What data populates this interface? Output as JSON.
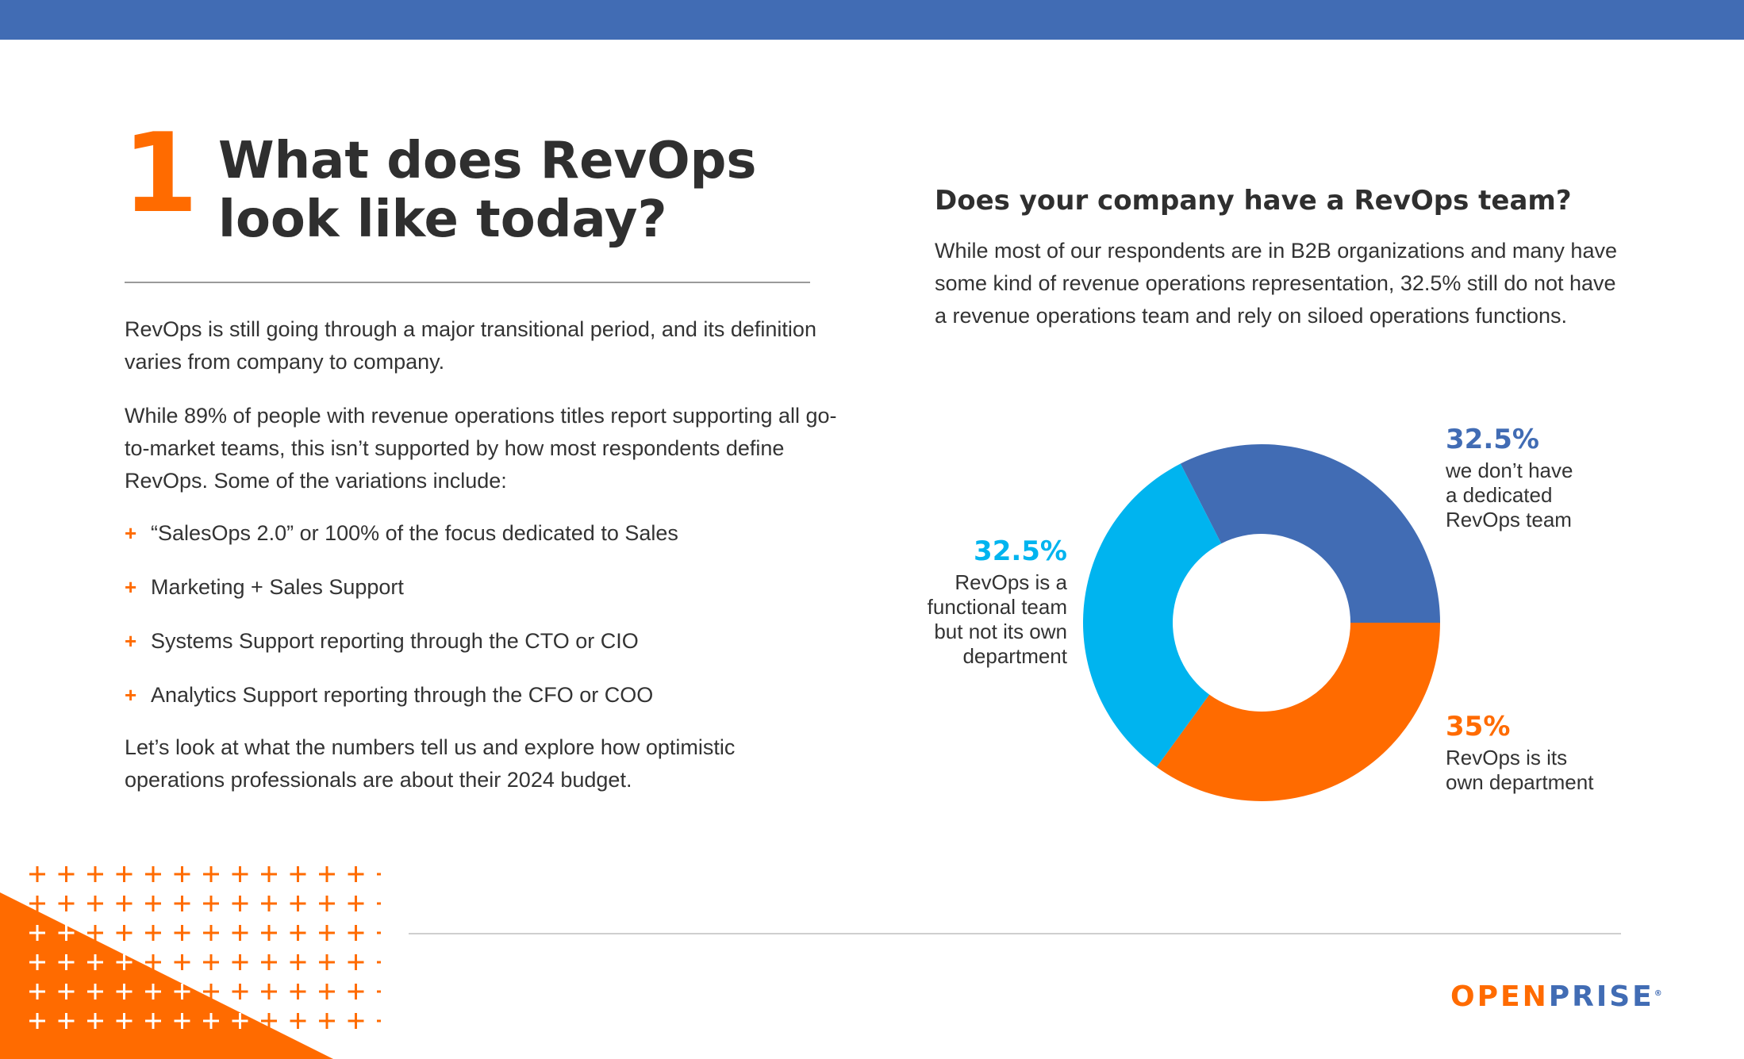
{
  "section": {
    "number": "1",
    "heading_line1": "What does RevOps",
    "heading_line2": "look like today?"
  },
  "intro": {
    "p1": "RevOps is still going through a major transitional period, and its definition varies from company to company.",
    "p2": "While 89% of people with revenue operations titles report supporting all go-to-market teams, this isn’t supported by how most respondents define RevOps. Some of the variations include:",
    "bullets": [
      "“SalesOps 2.0” or 100% of the focus dedicated to Sales",
      "Marketing + Sales Support",
      "Systems Support reporting through the CTO or CIO",
      "Analytics Support reporting through the CFO or COO"
    ],
    "bullet_marker": "+",
    "p3": "Let’s look at what the numbers tell us and explore how optimistic operations professionals are about their 2024 budget."
  },
  "chart_data": {
    "type": "pie",
    "donut": true,
    "title": "Does your company have a RevOps team?",
    "description": "While most of our respondents are in B2B organizations and many have some kind of revenue operations representation, 32.5% still do not have a revenue operations team and rely on siloed operations functions.",
    "slices": [
      {
        "label_pct": "32.5%",
        "value": 32.5,
        "color": "#416cb4",
        "label_lines": [
          "we don’t have",
          "a dedicated",
          "RevOps team"
        ]
      },
      {
        "label_pct": "35%",
        "value": 35,
        "color": "#ff6b00",
        "label_lines": [
          "RevOps is its",
          "own department"
        ]
      },
      {
        "label_pct": "32.5%",
        "value": 32.5,
        "color": "#00b4ef",
        "label_lines": [
          "RevOps is a",
          "functional team",
          "but not its own",
          "department"
        ]
      }
    ],
    "legend": "none"
  },
  "brand": {
    "logo_part1": "OPEN",
    "logo_part2": "PRISE",
    "logo_mark": "®",
    "accent_orange": "#ff6b00",
    "accent_blue": "#416cb4",
    "accent_cyan": "#00b4ef"
  }
}
